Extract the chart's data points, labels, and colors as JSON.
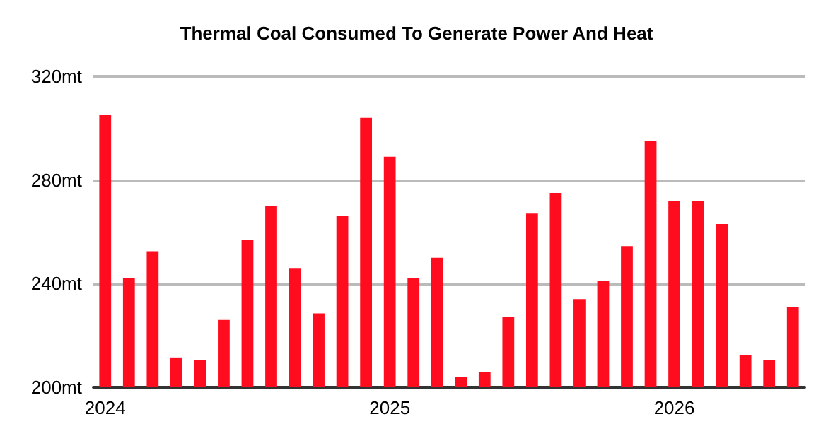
{
  "chart_data": {
    "type": "bar",
    "title": "Thermal Coal Consumed To Generate Power And Heat",
    "categories": [
      "2024",
      null,
      null,
      null,
      null,
      null,
      null,
      null,
      null,
      null,
      null,
      null,
      "2025",
      null,
      null,
      null,
      null,
      null,
      null,
      null,
      null,
      null,
      null,
      null,
      "2026",
      null,
      null,
      null,
      null,
      null
    ],
    "values": [
      305,
      242,
      252.5,
      211.5,
      210.5,
      226,
      257,
      270,
      246,
      228.5,
      266,
      304,
      289,
      242,
      250,
      204,
      206,
      227,
      267,
      275,
      234,
      241,
      254.5,
      295,
      272,
      272,
      263,
      212.5,
      210.5,
      231
    ],
    "color": "#ff0d1f",
    "ylim": [
      200,
      320
    ],
    "yticks": [
      {
        "value": 200,
        "label": "200mt"
      },
      {
        "value": 240,
        "label": "240mt"
      },
      {
        "value": 280,
        "label": "280mt"
      },
      {
        "value": 320,
        "label": "320mt"
      }
    ],
    "grid": "y"
  }
}
